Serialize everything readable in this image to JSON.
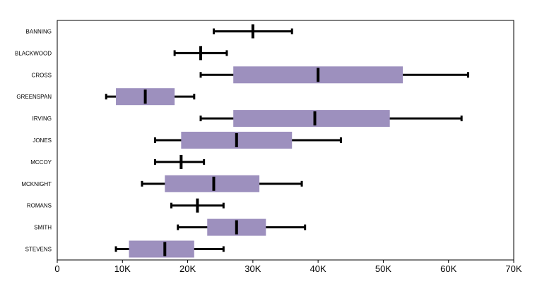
{
  "chart_data": {
    "type": "boxplot",
    "orientation": "horizontal",
    "title": "",
    "xlabel": "",
    "ylabel": "",
    "xlim": [
      0,
      70000
    ],
    "x_ticks": [
      0,
      10000,
      20000,
      30000,
      40000,
      50000,
      60000,
      70000
    ],
    "x_tick_labels": [
      "0",
      "10K",
      "20K",
      "30K",
      "40K",
      "50K",
      "60K",
      "70K"
    ],
    "grid": false,
    "legend": "none",
    "box_color": "#9d90be",
    "whisker_color": "#000000",
    "categories": [
      "BANNING",
      "BLACKWOOD",
      "CROSS",
      "GREENSPAN",
      "IRVING",
      "JONES",
      "MCCOY",
      "MCKNIGHT",
      "ROMANS",
      "SMITH",
      "STEVENS"
    ],
    "boxes": [
      {
        "category": "BANNING",
        "min": 24000,
        "q1": 30000,
        "median": 30000,
        "q3": 30000,
        "max": 36000
      },
      {
        "category": "BLACKWOOD",
        "min": 18000,
        "q1": 22000,
        "median": 22000,
        "q3": 22000,
        "max": 26000
      },
      {
        "category": "CROSS",
        "min": 22000,
        "q1": 27000,
        "median": 40000,
        "q3": 53000,
        "max": 63000
      },
      {
        "category": "GREENSPAN",
        "min": 7500,
        "q1": 9000,
        "median": 13500,
        "q3": 18000,
        "max": 21000
      },
      {
        "category": "IRVING",
        "min": 22000,
        "q1": 27000,
        "median": 39500,
        "q3": 51000,
        "max": 62000
      },
      {
        "category": "JONES",
        "min": 15000,
        "q1": 19000,
        "median": 27500,
        "q3": 36000,
        "max": 43500
      },
      {
        "category": "MCCOY",
        "min": 15000,
        "q1": 19000,
        "median": 19000,
        "q3": 19000,
        "max": 22500
      },
      {
        "category": "MCKNIGHT",
        "min": 13000,
        "q1": 16500,
        "median": 24000,
        "q3": 31000,
        "max": 37500
      },
      {
        "category": "ROMANS",
        "min": 17500,
        "q1": 21500,
        "median": 21500,
        "q3": 21500,
        "max": 25500
      },
      {
        "category": "SMITH",
        "min": 18500,
        "q1": 23000,
        "median": 27500,
        "q3": 32000,
        "max": 38000
      },
      {
        "category": "STEVENS",
        "min": 9000,
        "q1": 11000,
        "median": 16500,
        "q3": 21000,
        "max": 25500
      }
    ]
  }
}
